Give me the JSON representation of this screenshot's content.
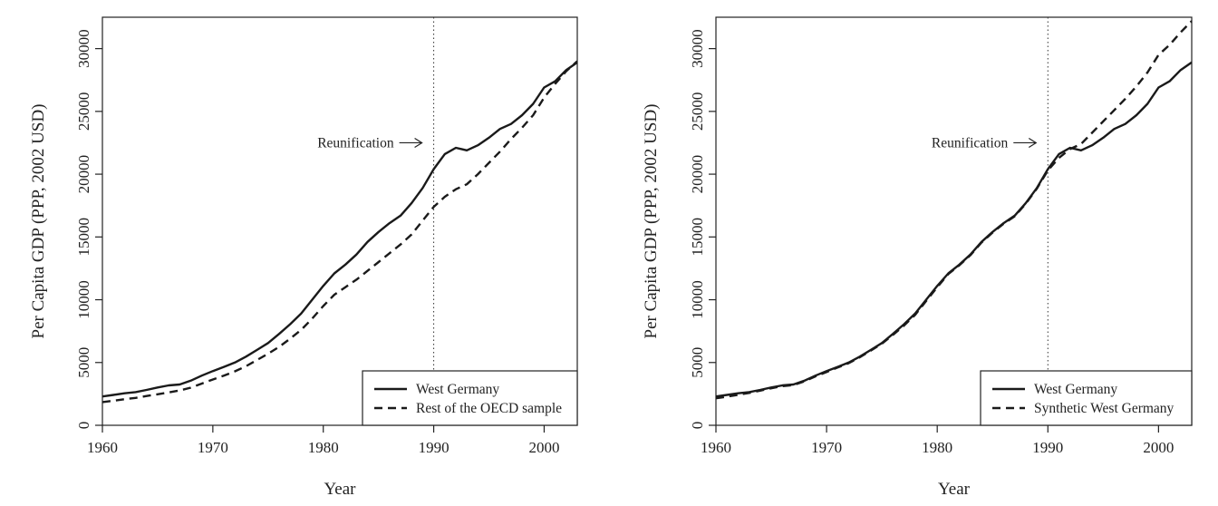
{
  "chart_data": [
    {
      "type": "line",
      "xlabel": "Year",
      "ylabel": "Per Capita GDP (PPP, 2002 USD)",
      "xlim": [
        1960,
        2003
      ],
      "ylim": [
        0,
        32500
      ],
      "xticks": [
        "1960",
        "1970",
        "1980",
        "1990",
        "2000"
      ],
      "yticks": [
        "0",
        "5000",
        "10000",
        "15000",
        "20000",
        "25000",
        "30000"
      ],
      "vline": 1990,
      "annotation": {
        "text": "Reunification",
        "x": 1990,
        "y": 22500
      },
      "legend": "bottom-right",
      "x": [
        1960,
        1961,
        1962,
        1963,
        1964,
        1965,
        1966,
        1967,
        1968,
        1969,
        1970,
        1971,
        1972,
        1973,
        1974,
        1975,
        1976,
        1977,
        1978,
        1979,
        1980,
        1981,
        1982,
        1983,
        1984,
        1985,
        1986,
        1987,
        1988,
        1989,
        1990,
        1991,
        1992,
        1993,
        1994,
        1995,
        1996,
        1997,
        1998,
        1999,
        2000,
        2001,
        2002,
        2003
      ],
      "series": [
        {
          "name": "West Germany",
          "style": "solid",
          "values": [
            2300,
            2420,
            2550,
            2640,
            2820,
            3010,
            3180,
            3250,
            3550,
            3960,
            4320,
            4650,
            5000,
            5470,
            6000,
            6550,
            7280,
            8050,
            8900,
            10000,
            11100,
            12100,
            12800,
            13600,
            14600,
            15400,
            16100,
            16700,
            17700,
            18900,
            20400,
            21600,
            22100,
            21900,
            22300,
            22900,
            23600,
            24000,
            24700,
            25600,
            26900,
            27400,
            28300,
            28900
          ]
        },
        {
          "name": "Rest of the OECD sample",
          "style": "dashed",
          "values": [
            1850,
            1960,
            2080,
            2180,
            2330,
            2470,
            2620,
            2770,
            3000,
            3320,
            3650,
            3950,
            4300,
            4700,
            5200,
            5700,
            6250,
            6900,
            7600,
            8500,
            9500,
            10400,
            11000,
            11600,
            12300,
            13000,
            13700,
            14400,
            15200,
            16300,
            17400,
            18200,
            18800,
            19200,
            20000,
            20900,
            21800,
            22800,
            23700,
            24700,
            26100,
            27200,
            28200,
            29000
          ]
        }
      ]
    },
    {
      "type": "line",
      "xlabel": "Year",
      "ylabel": "Per Capita GDP (PPP, 2002 USD)",
      "xlim": [
        1960,
        2003
      ],
      "ylim": [
        0,
        32500
      ],
      "xticks": [
        "1960",
        "1970",
        "1980",
        "1990",
        "2000"
      ],
      "yticks": [
        "0",
        "5000",
        "10000",
        "15000",
        "20000",
        "25000",
        "30000"
      ],
      "vline": 1990,
      "annotation": {
        "text": "Reunification",
        "x": 1990,
        "y": 22500
      },
      "legend": "bottom-right",
      "x": [
        1960,
        1961,
        1962,
        1963,
        1964,
        1965,
        1966,
        1967,
        1968,
        1969,
        1970,
        1971,
        1972,
        1973,
        1974,
        1975,
        1976,
        1977,
        1978,
        1979,
        1980,
        1981,
        1982,
        1983,
        1984,
        1985,
        1986,
        1987,
        1988,
        1989,
        1990,
        1991,
        1992,
        1993,
        1994,
        1995,
        1996,
        1997,
        1998,
        1999,
        2000,
        2001,
        2002,
        2003
      ],
      "series": [
        {
          "name": "West Germany",
          "style": "solid",
          "values": [
            2300,
            2420,
            2550,
            2640,
            2820,
            3010,
            3180,
            3250,
            3550,
            3960,
            4320,
            4650,
            5000,
            5470,
            6000,
            6550,
            7280,
            8050,
            8900,
            10000,
            11100,
            12100,
            12800,
            13600,
            14600,
            15400,
            16100,
            16700,
            17700,
            18900,
            20400,
            21600,
            22100,
            21900,
            22300,
            22900,
            23600,
            24000,
            24700,
            25600,
            26900,
            27400,
            28300,
            28900
          ]
        },
        {
          "name": "Synthetic West Germany",
          "style": "dashed",
          "values": [
            2150,
            2280,
            2430,
            2580,
            2760,
            2950,
            3120,
            3200,
            3500,
            3900,
            4250,
            4600,
            4950,
            5420,
            5950,
            6500,
            7200,
            7950,
            8800,
            9900,
            11000,
            12050,
            12750,
            13550,
            14550,
            15350,
            16050,
            16650,
            17650,
            18850,
            20300,
            21300,
            22000,
            22400,
            23300,
            24200,
            25100,
            26000,
            27000,
            28100,
            29500,
            30300,
            31300,
            32200
          ]
        }
      ]
    }
  ]
}
